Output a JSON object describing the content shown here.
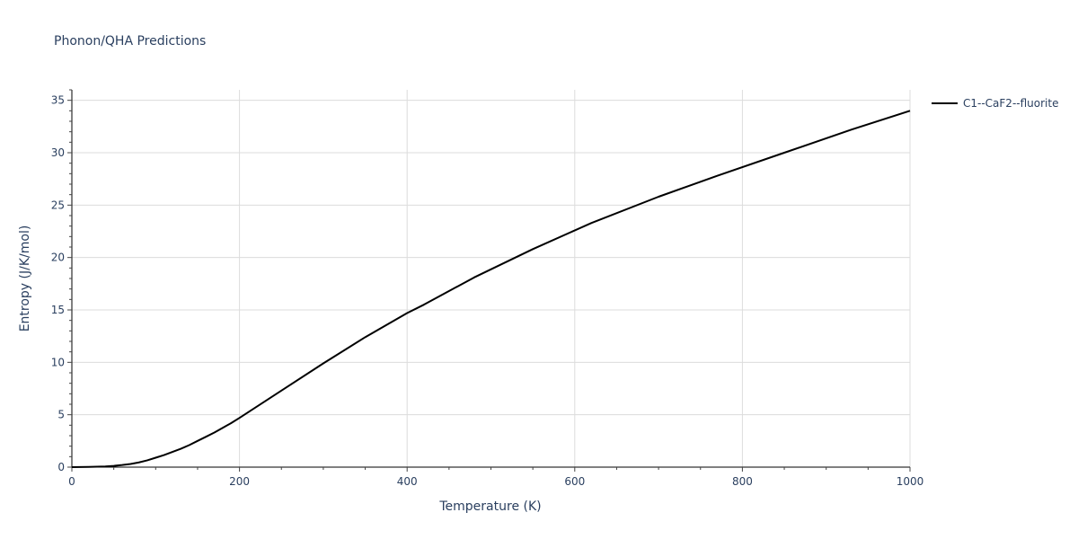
{
  "chart_data": {
    "type": "line",
    "title": "Phonon/QHA Predictions",
    "xlabel": "Temperature (K)",
    "ylabel": "Entropy (J/K/mol)",
    "xlim": [
      0,
      1000
    ],
    "ylim": [
      0,
      36
    ],
    "x_ticks": [
      0,
      200,
      400,
      600,
      800,
      1000
    ],
    "y_ticks": [
      0,
      5,
      10,
      15,
      20,
      25,
      30,
      35
    ],
    "grid": true,
    "legend_position": "top-right",
    "series": [
      {
        "name": "C1--CaF2--fluorite",
        "color": "#000000",
        "x": [
          0,
          10,
          20,
          30,
          40,
          50,
          60,
          70,
          80,
          90,
          100,
          110,
          120,
          130,
          140,
          150,
          160,
          170,
          180,
          190,
          200,
          250,
          300,
          350,
          400,
          420,
          480,
          550,
          620,
          700,
          770,
          850,
          930,
          1000
        ],
        "y": [
          0,
          0.01,
          0.02,
          0.04,
          0.06,
          0.12,
          0.2,
          0.3,
          0.45,
          0.65,
          0.9,
          1.15,
          1.45,
          1.75,
          2.1,
          2.5,
          2.9,
          3.3,
          3.75,
          4.2,
          4.7,
          7.3,
          9.9,
          12.4,
          14.7,
          15.5,
          18.1,
          20.8,
          23.3,
          25.8,
          27.8,
          30.0,
          32.2,
          34.0
        ]
      }
    ]
  }
}
